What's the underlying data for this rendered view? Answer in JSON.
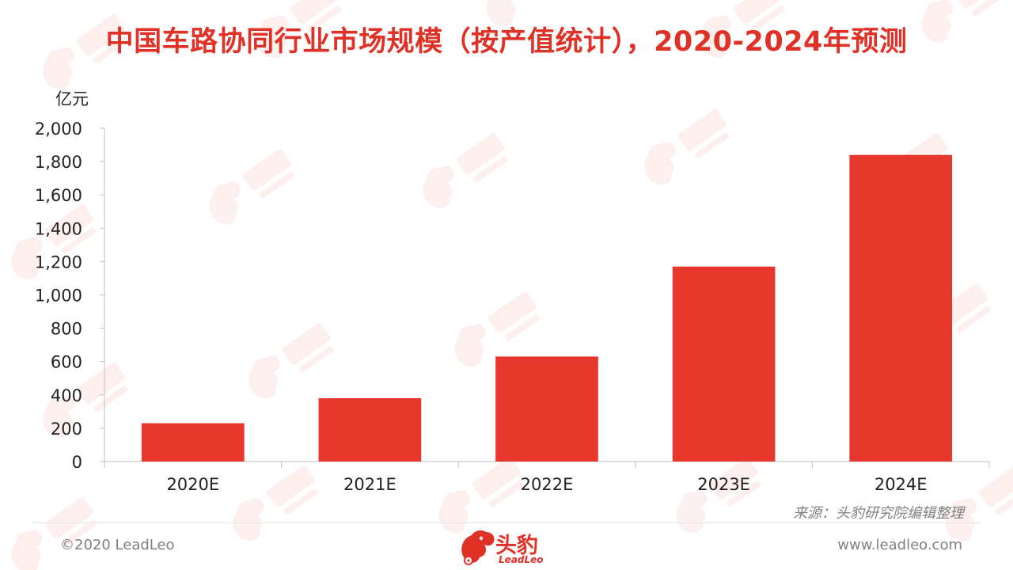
{
  "title": "中国车路协同行业市场规模（按产值统计），2020-2024年预测",
  "colors": {
    "accent": "#e03127",
    "bar": "#e8372d",
    "axis": "#bfbfbf",
    "text": "#222222",
    "muted": "#7f7f7f"
  },
  "chart_data": {
    "type": "bar",
    "categories": [
      "2020E",
      "2021E",
      "2022E",
      "2023E",
      "2024E"
    ],
    "values": [
      230,
      380,
      630,
      1170,
      1840
    ],
    "ylabel": "亿元",
    "ylim": [
      0,
      2000
    ],
    "yticks": [
      0,
      200,
      400,
      600,
      800,
      1000,
      1200,
      1400,
      1600,
      1800,
      2000
    ],
    "ytick_labels": [
      "0",
      "200",
      "400",
      "600",
      "800",
      "1,000",
      "1,200",
      "1,400",
      "1,600",
      "1,800",
      "2,000"
    ],
    "grid": false,
    "legend": "none"
  },
  "footer": {
    "source": "来源：头豹研究院编辑整理",
    "copyright": "©2020 LeadLeo",
    "website": "www.leadleo.com",
    "brand_cn": "头豹",
    "brand_en": "LeadLeo"
  }
}
